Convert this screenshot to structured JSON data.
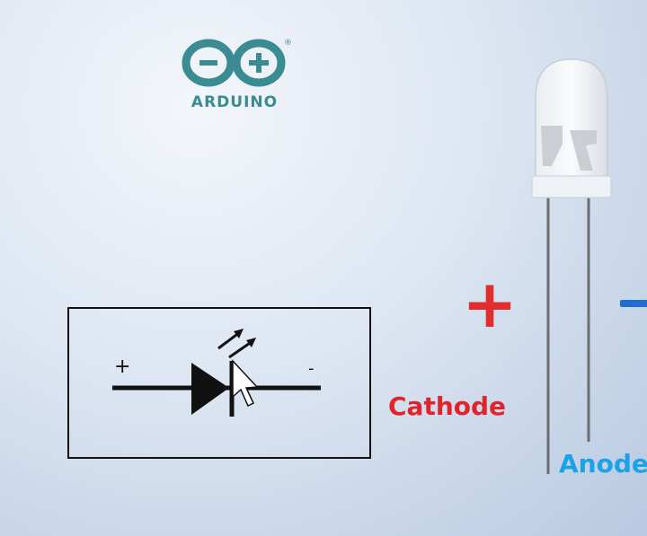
{
  "logo": {
    "text": "ARDUINO",
    "registered": "®"
  },
  "schematic": {
    "plus_label": "+",
    "minus_label": "-"
  },
  "labels": {
    "big_plus": "+",
    "cathode": "Cathode",
    "anode": "Anode"
  },
  "colors": {
    "arduino_teal": "#3a8b92",
    "cathode_red": "#e0242c",
    "anode_blue": "#1aa3e6",
    "minus_blue": "#1f6fd1"
  }
}
